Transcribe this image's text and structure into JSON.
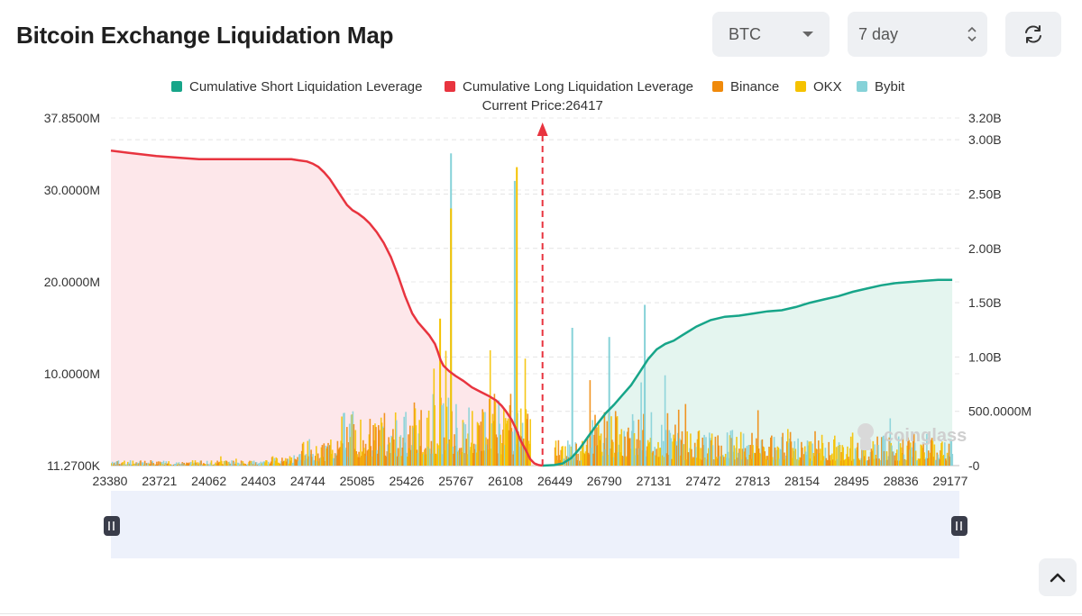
{
  "header": {
    "title": "Bitcoin Exchange Liquidation Map",
    "coin_select": {
      "value": "BTC"
    },
    "range_select": {
      "value": "7 day"
    }
  },
  "icons": {
    "refresh": "refresh-icon",
    "scroll_top": "chevron-up-icon",
    "slider_handle": "pause-handle-icon"
  },
  "chart_data": {
    "type": "bar",
    "current_price_label": "Current Price:26417",
    "current_price": 26417,
    "legend": [
      {
        "name": "Cumulative Short Liquidation Leverage",
        "color": "#17a589"
      },
      {
        "name": "Cumulative Long Liquidation Leverage",
        "color": "#e8343f"
      },
      {
        "name": "Binance",
        "color": "#f08a0b"
      },
      {
        "name": "OKX",
        "color": "#f5c200"
      },
      {
        "name": "Bybit",
        "color": "#86d2d8"
      }
    ],
    "x_ticks": [
      "23380",
      "23721",
      "24062",
      "24403",
      "24744",
      "25085",
      "25426",
      "25767",
      "26108",
      "26449",
      "26790",
      "27131",
      "27472",
      "27813",
      "28154",
      "28495",
      "28836",
      "29177"
    ],
    "xlim": [
      23380,
      29350
    ],
    "y_left_ticks": [
      {
        "label": "37.8500M",
        "value": 37850000
      },
      {
        "label": "30.0000M",
        "value": 30000000
      },
      {
        "label": "20.0000M",
        "value": 20000000
      },
      {
        "label": "10.0000M",
        "value": 10000000
      },
      {
        "label": "11.2700K",
        "value": 0
      }
    ],
    "y_left_lim": [
      0,
      37850000
    ],
    "y_right_ticks": [
      {
        "label": "3.20B",
        "value": 3200000000.0
      },
      {
        "label": "3.00B",
        "value": 3000000000.0
      },
      {
        "label": "2.50B",
        "value": 2500000000.0
      },
      {
        "label": "2.00B",
        "value": 2000000000.0
      },
      {
        "label": "1.50B",
        "value": 1500000000.0
      },
      {
        "label": "1.00B",
        "value": 1000000000.0
      },
      {
        "label": "500.0000M",
        "value": 500000000.0
      },
      {
        "label": "-0",
        "value": 0
      }
    ],
    "y_right_lim": [
      0,
      3200000000.0
    ],
    "long_cumulative": {
      "x": [
        23380,
        23500,
        23700,
        23900,
        24000,
        24300,
        24600,
        24650,
        24700,
        24760,
        24800,
        24840,
        24880,
        24920,
        24960,
        25000,
        25040,
        25080,
        25120,
        25160,
        25200,
        25250,
        25300,
        25350,
        25400,
        25450,
        25500,
        25540,
        25580,
        25620,
        25660,
        25680,
        25700,
        25720,
        25760,
        25800,
        25860,
        25920,
        25980,
        26040,
        26090,
        26130,
        26160,
        26200,
        26230,
        26260,
        26300,
        26330,
        26360,
        26390,
        26417
      ],
      "values": [
        2900000000.0,
        2880000000.0,
        2850000000.0,
        2830000000.0,
        2820000000.0,
        2820000000.0,
        2820000000.0,
        2820000000.0,
        2810000000.0,
        2800000000.0,
        2780000000.0,
        2750000000.0,
        2700000000.0,
        2640000000.0,
        2560000000.0,
        2480000000.0,
        2400000000.0,
        2350000000.0,
        2320000000.0,
        2280000000.0,
        2230000000.0,
        2150000000.0,
        2050000000.0,
        1920000000.0,
        1750000000.0,
        1560000000.0,
        1400000000.0,
        1320000000.0,
        1260000000.0,
        1200000000.0,
        1120000000.0,
        1050000000.0,
        970000000.0,
        920000000.0,
        870000000.0,
        830000000.0,
        780000000.0,
        720000000.0,
        680000000.0,
        640000000.0,
        600000000.0,
        550000000.0,
        500000000.0,
        420000000.0,
        340000000.0,
        240000000.0,
        140000000.0,
        60000000.0,
        20000000.0,
        5000000.0,
        0
      ]
    },
    "short_cumulative": {
      "x": [
        26417,
        26500,
        26560,
        26620,
        26680,
        26740,
        26800,
        26860,
        26920,
        26980,
        27040,
        27100,
        27160,
        27220,
        27280,
        27340,
        27400,
        27500,
        27600,
        27700,
        27800,
        27900,
        28000,
        28100,
        28200,
        28300,
        28400,
        28500,
        28600,
        28700,
        28800,
        28900,
        29000,
        29100,
        29200,
        29300
      ],
      "values": [
        0,
        5000000.0,
        20000000.0,
        70000000.0,
        160000000.0,
        270000000.0,
        380000000.0,
        480000000.0,
        560000000.0,
        650000000.0,
        740000000.0,
        860000000.0,
        980000000.0,
        1070000000.0,
        1120000000.0,
        1150000000.0,
        1200000000.0,
        1280000000.0,
        1340000000.0,
        1370000000.0,
        1380000000.0,
        1400000000.0,
        1420000000.0,
        1430000000.0,
        1460000000.0,
        1500000000.0,
        1530000000.0,
        1560000000.0,
        1600000000.0,
        1630000000.0,
        1660000000.0,
        1680000000.0,
        1690000000.0,
        1700000000.0,
        1710000000.0,
        1710000000.0
      ]
    },
    "bars_note": "Binance/OKX/Bybit per-price-level liquidation leverage bars (left axis); heights estimated",
    "bar_seed": 42
  }
}
